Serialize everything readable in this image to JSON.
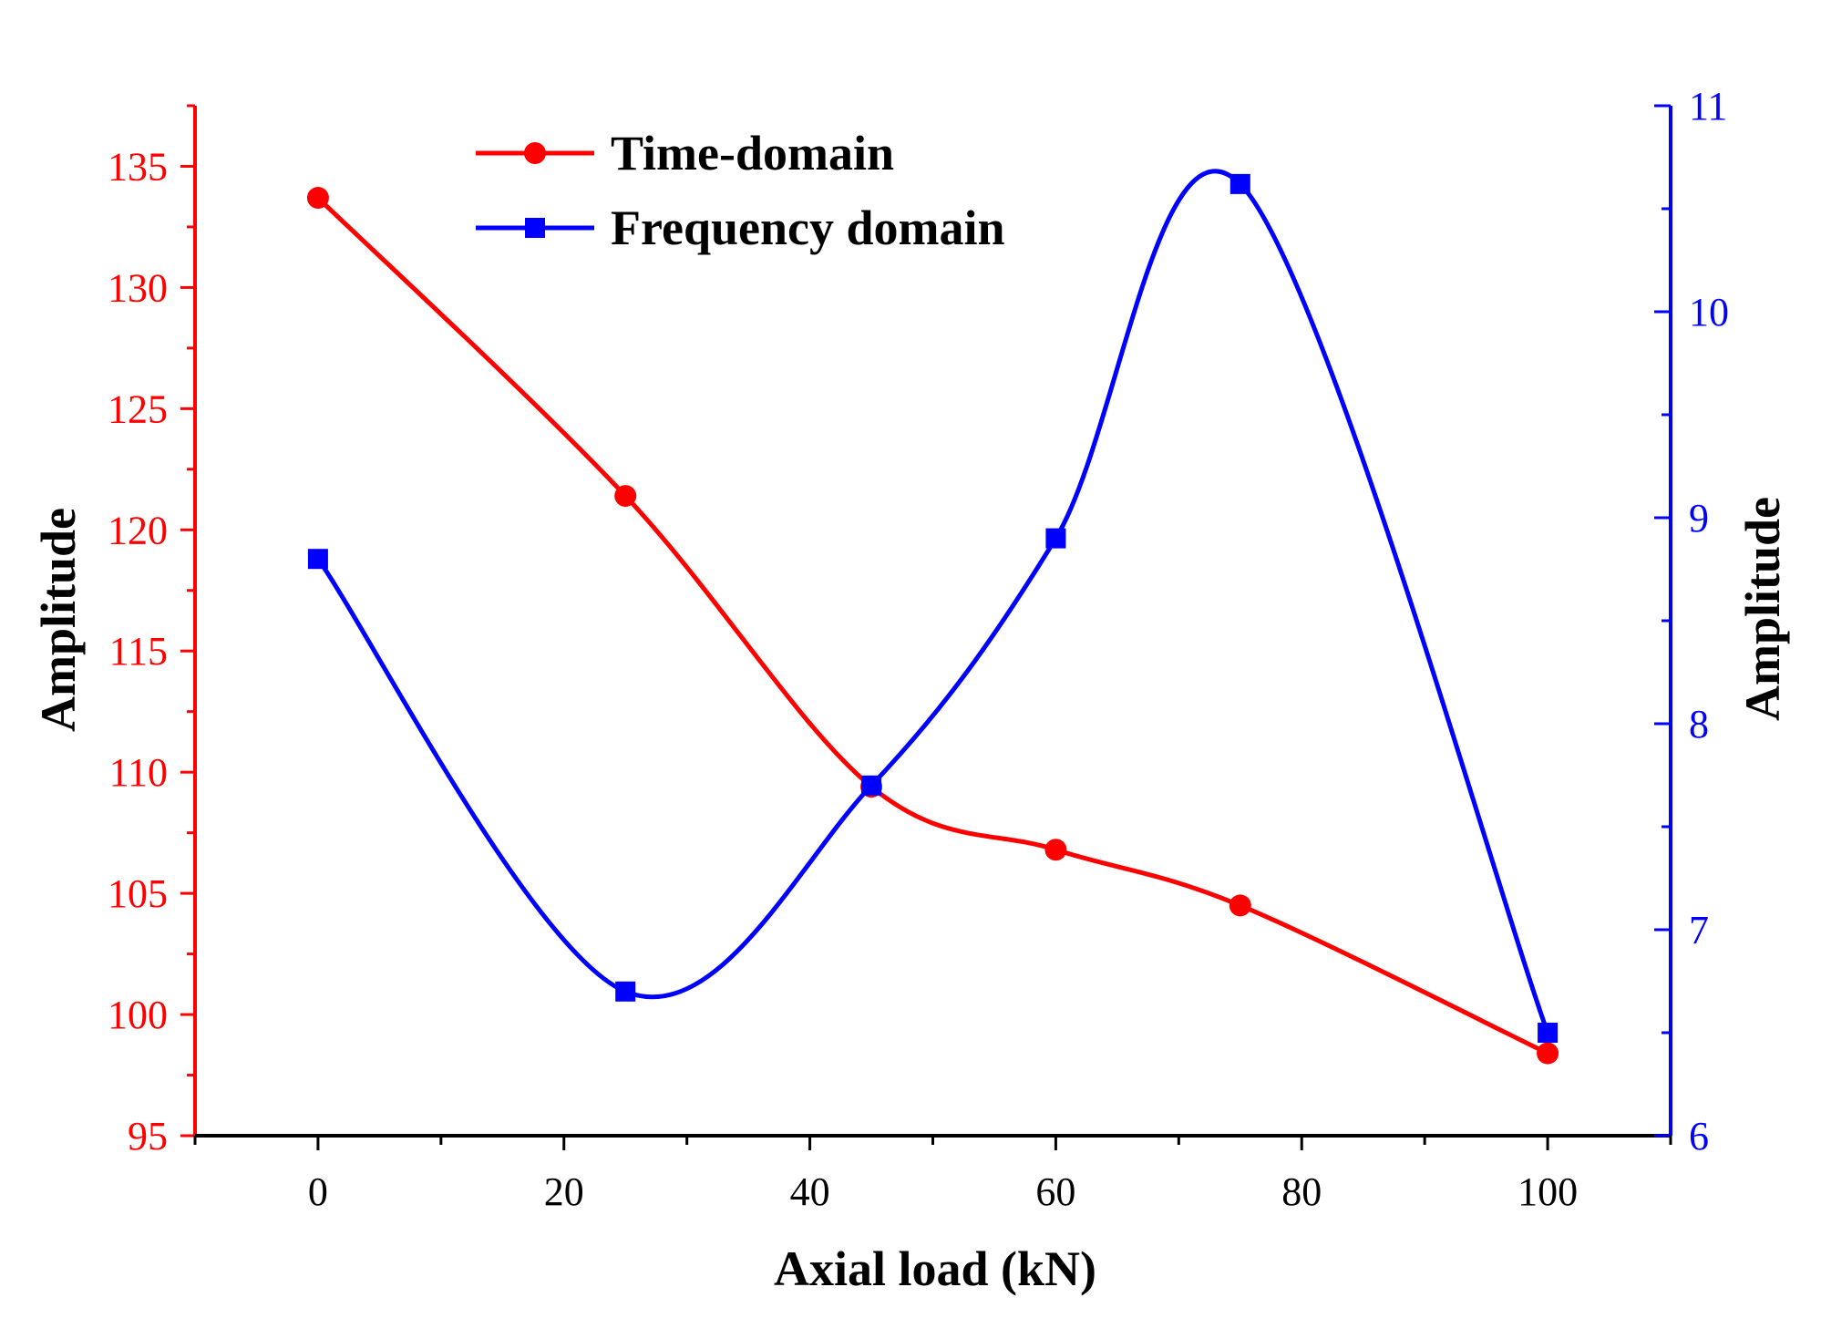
{
  "chart_data": {
    "type": "line",
    "xlabel": "Axial load (kN)",
    "ylabel_left": "Amplitude",
    "ylabel_right": "Amplitude",
    "x_ticks": [
      0,
      20,
      40,
      60,
      80,
      100
    ],
    "xlim": [
      -10,
      110
    ],
    "ylim_left": [
      95,
      137.5
    ],
    "y_ticks_left": [
      95,
      100,
      105,
      110,
      115,
      120,
      125,
      130,
      135
    ],
    "ylim_right": [
      6,
      11
    ],
    "y_ticks_right": [
      6,
      7,
      8,
      9,
      10,
      11
    ],
    "grid": false,
    "legend_position": "top-left",
    "series": [
      {
        "name": "Time-domain",
        "axis": "left",
        "color": "#ff0000",
        "marker": "circle",
        "x": [
          0,
          25,
          45,
          60,
          75,
          100
        ],
        "y": [
          133.7,
          121.4,
          109.4,
          106.8,
          104.5,
          98.4
        ]
      },
      {
        "name": "Frequency domain",
        "axis": "right",
        "color": "#0000ff",
        "marker": "square",
        "x": [
          0,
          25,
          45,
          60,
          75,
          100
        ],
        "y": [
          8.8,
          6.7,
          7.7,
          8.9,
          10.62,
          6.5
        ]
      }
    ]
  }
}
